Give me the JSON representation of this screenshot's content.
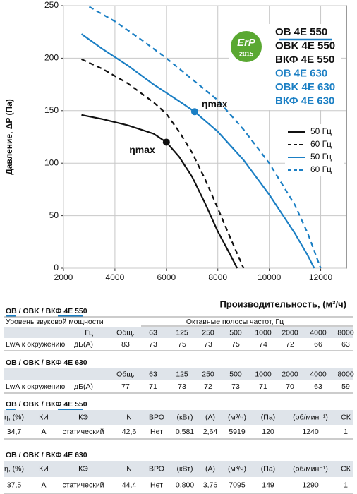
{
  "chart_data": {
    "type": "line",
    "x_label": "Производительность, (м³/ч)",
    "y_label": "Давление, ΔP (Па)",
    "xlim": [
      2000,
      13000
    ],
    "ylim": [
      0,
      250
    ],
    "xticks": [
      2000,
      4000,
      6000,
      8000,
      10000,
      12000
    ],
    "yticks": [
      0,
      50,
      100,
      150,
      200,
      250
    ],
    "grid": true,
    "legend": "right",
    "series": [
      {
        "name": "50 Гц",
        "color": "#111111",
        "dash": false,
        "x": [
          2700,
          3500,
          4500,
          5500,
          6000,
          6500,
          7000,
          7500,
          8000,
          8500,
          8750
        ],
        "values": [
          146,
          142,
          136,
          128,
          120,
          106,
          87,
          62,
          35,
          12,
          0
        ]
      },
      {
        "name": "60 Гц",
        "color": "#111111",
        "dash": true,
        "x": [
          2700,
          3500,
          4500,
          5500,
          6000,
          6500,
          7000,
          7500,
          8000,
          8500,
          9000
        ],
        "values": [
          199,
          190,
          176,
          158,
          147,
          130,
          110,
          85,
          57,
          28,
          0
        ]
      },
      {
        "name": "50 Гц",
        "color": "#1b7fc4",
        "dash": false,
        "x": [
          2700,
          3500,
          4500,
          5500,
          6000,
          6500,
          7100,
          8000,
          9000,
          10000,
          11000,
          11500,
          11750
        ],
        "values": [
          223,
          209,
          193,
          175,
          167,
          159,
          149,
          130,
          103,
          70,
          33,
          12,
          0
        ]
      },
      {
        "name": "60 Гц",
        "color": "#1b7fc4",
        "dash": true,
        "x": [
          3000,
          4000,
          5000,
          6000,
          7000,
          8000,
          9000,
          10000,
          11000,
          11500,
          12000
        ],
        "values": [
          249,
          235,
          218,
          200,
          180,
          160,
          132,
          100,
          60,
          33,
          0
        ]
      }
    ],
    "annotations": [
      {
        "text": "ηmax",
        "x": 6000,
        "y": 120,
        "color": "#111111"
      },
      {
        "text": "ηmax",
        "x": 7100,
        "y": 149,
        "color": "#1b7fc4"
      }
    ]
  },
  "badge": {
    "logo": "ErP",
    "year": "2015",
    "models": [
      {
        "text": "OB 4E 550",
        "color": "#111111"
      },
      {
        "text": "OBK 4E 550",
        "color": "#111111"
      },
      {
        "text": "ВКФ 4E 550",
        "color": "#111111"
      },
      {
        "text": "OB 4E 630",
        "color": "#1b7fc4"
      },
      {
        "text": "OBK 4E 630",
        "color": "#1b7fc4"
      },
      {
        "text": "ВКФ 4E 630",
        "color": "#1b7fc4"
      }
    ]
  },
  "tables": [
    {
      "title": "OB / OBK / ВКФ 4E 550",
      "header": [
        "Уровень звуковой мощности",
        "Октавные полосы частот, Гц"
      ],
      "unit_head": "Гц",
      "columns": [
        "Общ.",
        "63",
        "125",
        "250",
        "500",
        "1000",
        "2000",
        "4000",
        "8000"
      ],
      "row": {
        "label": "LwA к окружению",
        "unit": "дБ(А)",
        "values": [
          "83",
          "73",
          "75",
          "73",
          "75",
          "74",
          "72",
          "66",
          "63"
        ]
      }
    },
    {
      "title": "OB / OBK / ВКФ 4E 630",
      "columns": [
        "Общ.",
        "63",
        "125",
        "250",
        "500",
        "1000",
        "2000",
        "4000",
        "8000"
      ],
      "row": {
        "label": "LwA к окружению",
        "unit": "дБ(А)",
        "values": [
          "77",
          "71",
          "73",
          "72",
          "73",
          "71",
          "70",
          "63",
          "59"
        ]
      }
    },
    {
      "title": "OB / OBK / ВКФ 4E 550",
      "columns": [
        "η, (%)",
        "КИ",
        "КЭ",
        "N",
        "ВРО",
        "(кВт)",
        "(А)",
        "(м³/ч)",
        "(Па)",
        "(об/мин⁻¹)",
        "СК"
      ],
      "row": {
        "values": [
          "34,7",
          "A",
          "статический",
          "42,6",
          "Нет",
          "0,581",
          "2,64",
          "5919",
          "120",
          "1240",
          "1"
        ]
      }
    },
    {
      "title": "OB / OBK / ВКФ 4E 630",
      "columns": [
        "η, (%)",
        "КИ",
        "КЭ",
        "N",
        "ВРО",
        "(кВт)",
        "(А)",
        "(м³/ч)",
        "(Па)",
        "(об/мин⁻¹)",
        "СК"
      ],
      "row": {
        "values": [
          "37,5",
          "A",
          "статический",
          "44,4",
          "Нет",
          "0,800",
          "3,76",
          "7095",
          "149",
          "1290",
          "1"
        ]
      }
    }
  ]
}
